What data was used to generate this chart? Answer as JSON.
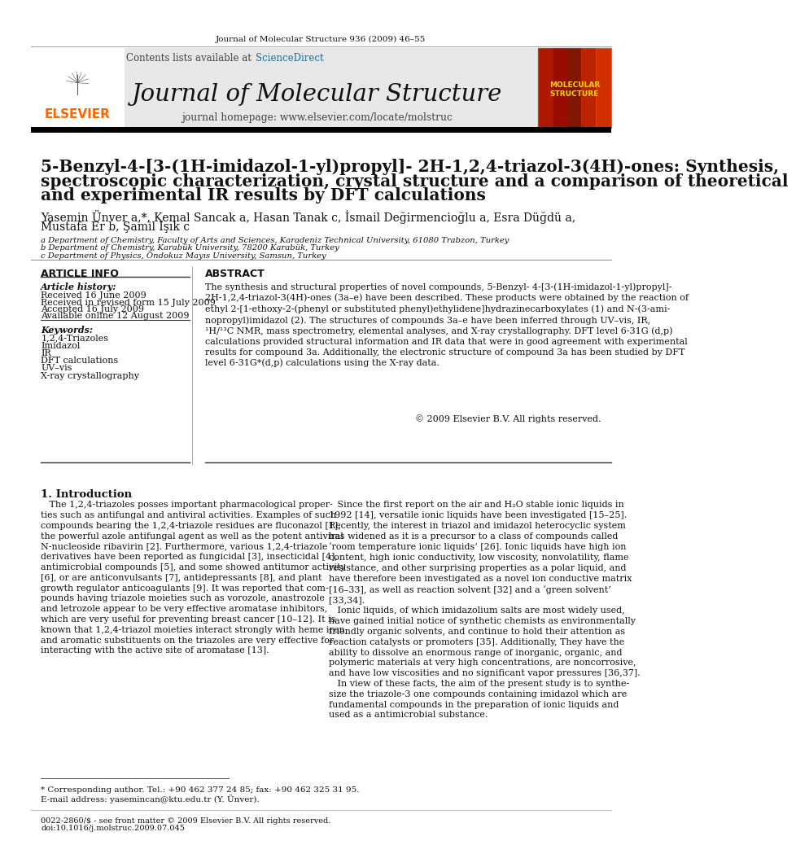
{
  "page_bg": "#ffffff",
  "journal_ref": "Journal of Molecular Structure 936 (2009) 46–55",
  "journal_name": "Journal of Molecular Structure",
  "journal_homepage": "journal homepage: www.elsevier.com/locate/molstruc",
  "contents_text": "Contents lists available at ",
  "sciencedirect_text": "ScienceDirect",
  "title_line1": "5-Benzyl-4-[3-(1H-imidazol-1-yl)propyl]- 2H-1,2,4-triazol-3(4H)-ones: Synthesis,",
  "title_line2": "spectroscopic characterization, crystal structure and a comparison of theoretical",
  "title_line3": "and experimental IR results by DFT calculations",
  "authors": "Yasemin Ünver a,*, Kemal Sancak a, Hasan Tanak c, İsmail Değirmencioğlu a, Esra Düğdü a,",
  "authors2": "Mustafa Er b, Şamil Işık c",
  "affil_a": "a Department of Chemistry, Faculty of Arts and Sciences, Karadeniz Technical University, 61080 Trabzon, Turkey",
  "affil_b": "b Department of Chemistry, Karabük University, 78200 Karabük, Turkey",
  "affil_c": "c Department of Physics, Ondokuz Mayıs University, Samsun, Turkey",
  "article_info_header": "ARTICLE INFO",
  "abstract_header": "ABSTRACT",
  "article_history_label": "Article history:",
  "received1": "Received 16 June 2009",
  "received2": "Received in revised form 15 July 2009",
  "accepted": "Accepted 16 July 2009",
  "available": "Available online 12 August 2009",
  "keywords_label": "Keywords:",
  "keywords": [
    "1,2,4-Triazoles",
    "Imidazol",
    "IR",
    "DFT calculations",
    "UV–vis",
    "X-ray crystallography"
  ],
  "abstract_text": "The synthesis and structural properties of novel compounds, 5-Benzyl- 4-[3-(1H-imidazol-1-yl)propyl]-\n2H-1,2,4-triazol-3(4H)-ones (3a–e) have been described. These products were obtained by the reaction of\nethyl 2-[1-ethoxy-2-(phenyl or substituted phenyl)ethylidene]hydrazinecarboxylates (1) and N-(3-ami-\nnopropyl)imidazol (2). The structures of compounds 3a–e have been inferred through UV–vis, IR,\n¹H/¹³C NMR, mass spectrometry, elemental analyses, and X-ray crystallography. DFT level 6-31G (d,p)\ncalculations provided structural information and IR data that were in good agreement with experimental\nresults for compound 3a. Additionally, the electronic structure of compound 3a has been studied by DFT\nlevel 6-31G*(d,p) calculations using the X-ray data.",
  "copyright": "© 2009 Elsevier B.V. All rights reserved.",
  "intro_header": "1. Introduction",
  "intro_col1_para1": "   The 1,2,4-triazoles posses important pharmacological proper-\nties such as antifungal and antiviral activities. Examples of such\ncompounds bearing the 1,2,4-triazole residues are fluconazol [1],\nthe powerful azole antifungal agent as well as the potent antiviral\nN-nucleoside ribavirin [2]. Furthermore, various 1,2,4-triazole\nderivatives have been reported as fungicidal [3], insecticidal [4],\nantimicrobial compounds [5], and some showed antitumor activity\n[6], or are anticonvulsants [7], antidepressants [8], and plant\ngrowth regulator anticoagulants [9]. It was reported that com-\npounds having triazole moieties such as vorozole, anastrozole\nand letrozole appear to be very effective aromatase inhibitors,\nwhich are very useful for preventing breast cancer [10–12]. It is\nknown that 1,2,4-triazol moieties interact strongly with heme iron,\nand aromatic substituents on the triazoles are very effective for\ninteracting with the active site of aromatase [13].",
  "intro_col2_para1": "   Since the first report on the air and H₂O stable ionic liquids in\n1992 [14], versatile ionic liquids have been investigated [15–25].\nRecently, the interest in triazol and imidazol heterocyclic system\nhas widened as it is a precursor to a class of compounds called\n‘room temperature ionic liquids’ [26]. Ionic liquids have high ion\ncontent, high ionic conductivity, low viscosity, nonvolatility, flame\nresistance, and other surprising properties as a polar liquid, and\nhave therefore been investigated as a novel ion conductive matrix\n[16–33], as well as reaction solvent [32] and a ‘green solvent’\n[33,34].\n   Ionic liquids, of which imidazolium salts are most widely used,\nhave gained initial notice of synthetic chemists as environmentally\nfriendly organic solvents, and continue to hold their attention as\nreaction catalysts or promoters [35]. Additionally, They have the\nability to dissolve an enormous range of inorganic, organic, and\npolymeric materials at very high concentrations, are noncorrosive,\nand have low viscosities and no significant vapor pressures [36,37].\n   In view of these facts, the aim of the present study is to synthe-\nsize the triazole-3 one compounds containing imidazol which are\nfundamental compounds in the preparation of ionic liquids and\nused as a antimicrobial substance.",
  "footnote1": "* Corresponding author. Tel.: +90 462 377 24 85; fax: +90 462 325 31 95.",
  "footnote2": "E-mail address: yasemincan@ktu.edu.tr (Y. Ünver).",
  "footer1": "0022-2860/$ - see front matter © 2009 Elsevier B.V. All rights reserved.",
  "footer2": "doi:10.1016/j.molstruc.2009.07.045",
  "header_bg": "#e8e8e8",
  "elsevier_orange": "#FF6600",
  "sciencedirect_blue": "#1a6ea8",
  "black_bar": "#000000"
}
